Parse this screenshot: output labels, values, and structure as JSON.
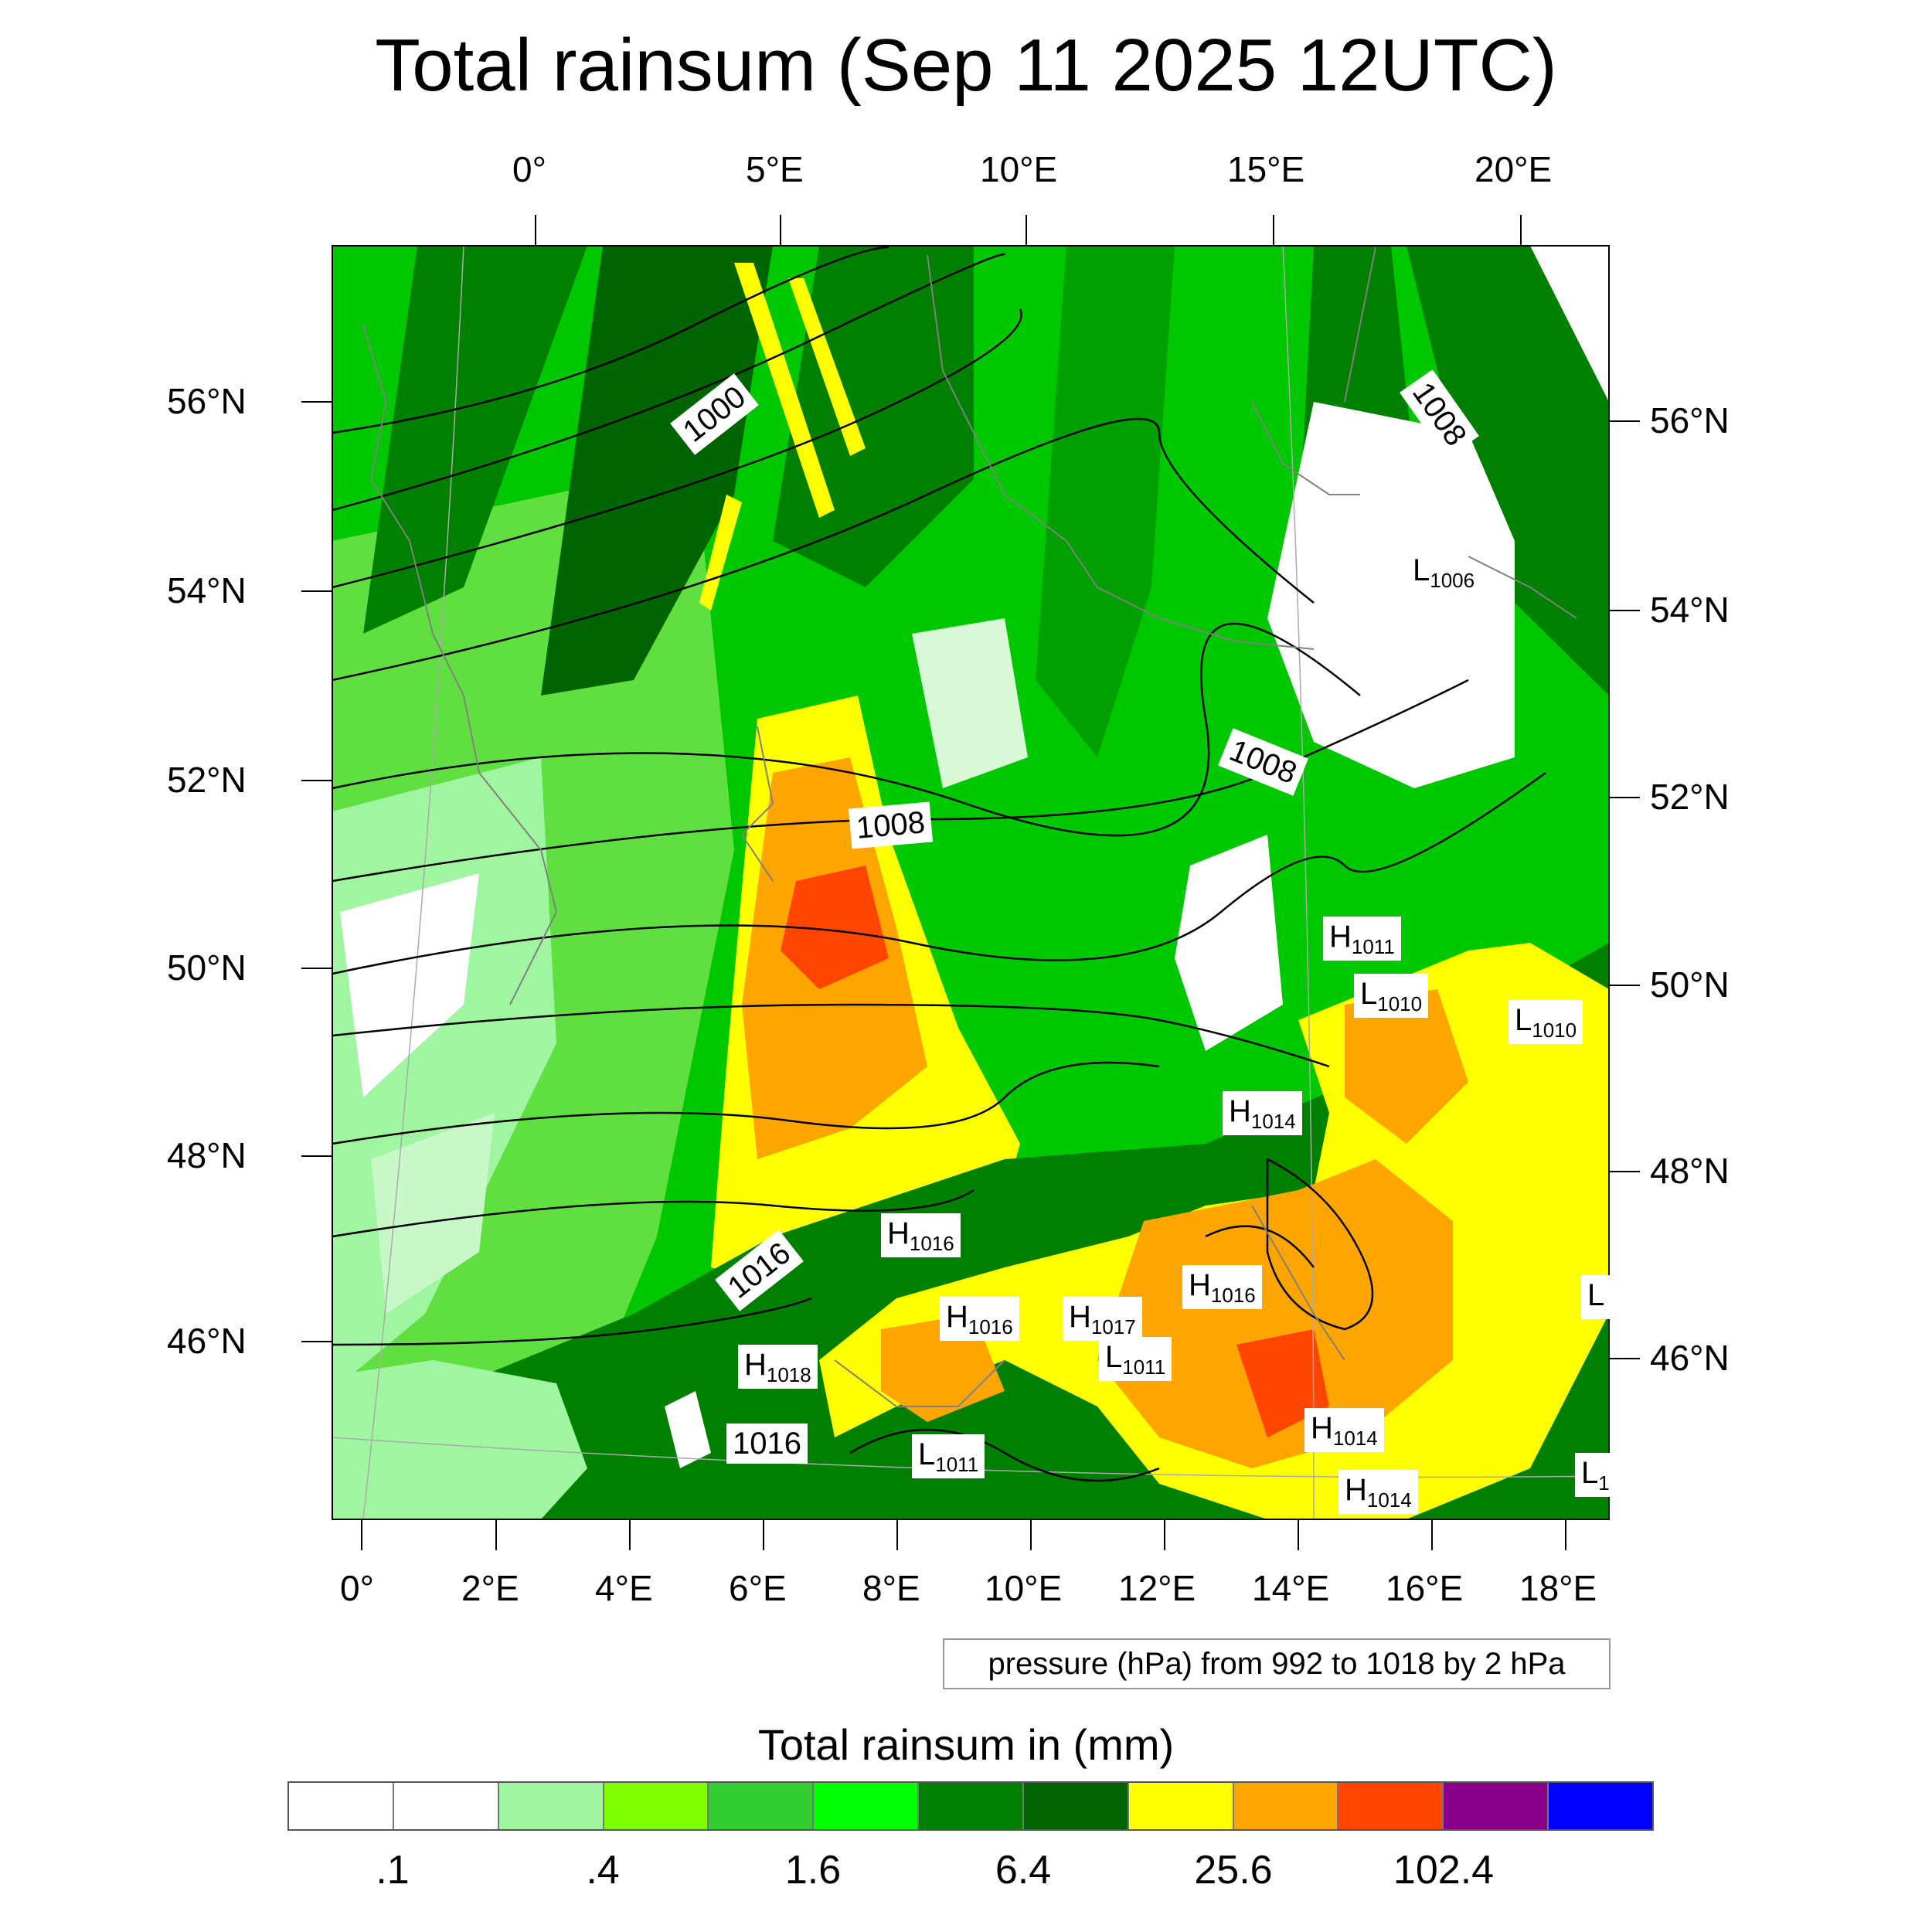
{
  "title": "Total rainsum (Sep 11 2025 12UTC)",
  "top_lon_labels": [
    "0°",
    "5°E",
    "10°E",
    "15°E",
    "20°E"
  ],
  "bottom_lon_labels": [
    "0°",
    "2°E",
    "4°E",
    "6°E",
    "8°E",
    "10°E",
    "12°E",
    "14°E",
    "16°E",
    "18°E"
  ],
  "left_lat_labels": [
    "56°N",
    "54°N",
    "52°N",
    "50°N",
    "48°N",
    "46°N"
  ],
  "right_lat_labels": [
    "56°N",
    "54°N",
    "52°N",
    "50°N",
    "48°N",
    "46°N"
  ],
  "pressure_info": "pressure (hPa) from 992 to 1018 by 2 hPa",
  "contour_labels": [
    "1000",
    "1008",
    "1008",
    "1008",
    "1016",
    "1016"
  ],
  "pressure_centers": [
    {
      "type": "L",
      "value": "1006"
    },
    {
      "type": "H",
      "value": "1011"
    },
    {
      "type": "L",
      "value": "1010"
    },
    {
      "type": "L",
      "value": "1010"
    },
    {
      "type": "H",
      "value": "1014"
    },
    {
      "type": "H",
      "value": "1016"
    },
    {
      "type": "H",
      "value": "1016"
    },
    {
      "type": "H",
      "value": "1016"
    },
    {
      "type": "H",
      "value": "1017"
    },
    {
      "type": "L",
      "value": "1011"
    },
    {
      "type": "H",
      "value": "1018"
    },
    {
      "type": "L",
      "value": "1011"
    },
    {
      "type": "H",
      "value": "1014"
    },
    {
      "type": "H",
      "value": "1014"
    },
    {
      "type": "L",
      "value": ""
    },
    {
      "type": "L",
      "value": "1"
    }
  ],
  "colorbar": {
    "title": "Total rainsum in (mm)",
    "colors": [
      "#ffffff",
      "#ffffff",
      "#a0f5a0",
      "#80ff00",
      "#32cd32",
      "#00ff00",
      "#008000",
      "#006400",
      "#ffff00",
      "#ffa500",
      "#ff4500",
      "#8b008b",
      "#0000ff"
    ],
    "tick_labels": [
      ".1",
      ".4",
      "1.6",
      "6.4",
      "25.6",
      "102.4"
    ]
  }
}
